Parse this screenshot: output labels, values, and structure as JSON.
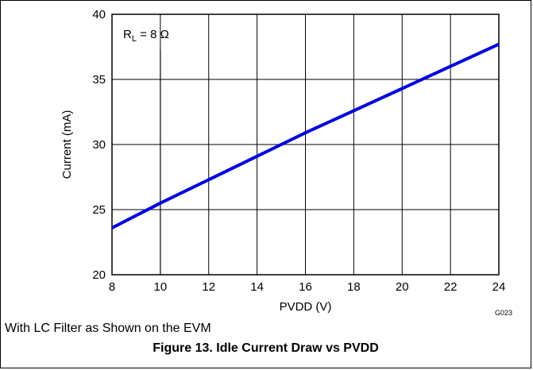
{
  "chart_data": {
    "type": "line",
    "xlabel": "PVDD (V)",
    "ylabel": "Current (mA)",
    "xlim": [
      8,
      24
    ],
    "ylim": [
      20,
      40
    ],
    "x_ticks": [
      "8",
      "10",
      "12",
      "14",
      "16",
      "18",
      "20",
      "22",
      "24"
    ],
    "y_ticks": [
      "20",
      "25",
      "30",
      "35",
      "40"
    ],
    "grid": true,
    "series": [
      {
        "color": "#0000dd",
        "x": [
          8,
          10,
          12,
          14,
          16,
          18,
          20,
          22,
          24
        ],
        "y": [
          23.6,
          25.5,
          27.3,
          29.1,
          30.9,
          32.6,
          34.3,
          36.0,
          37.7
        ]
      }
    ],
    "annotation": {
      "main": "R",
      "sub": "L",
      "rest": " = 8 Ω",
      "x": 10
    },
    "graph_code": "G023"
  },
  "note": "With LC Filter as Shown on the EVM",
  "caption": "Figure 13. Idle Current Draw vs PVDD"
}
